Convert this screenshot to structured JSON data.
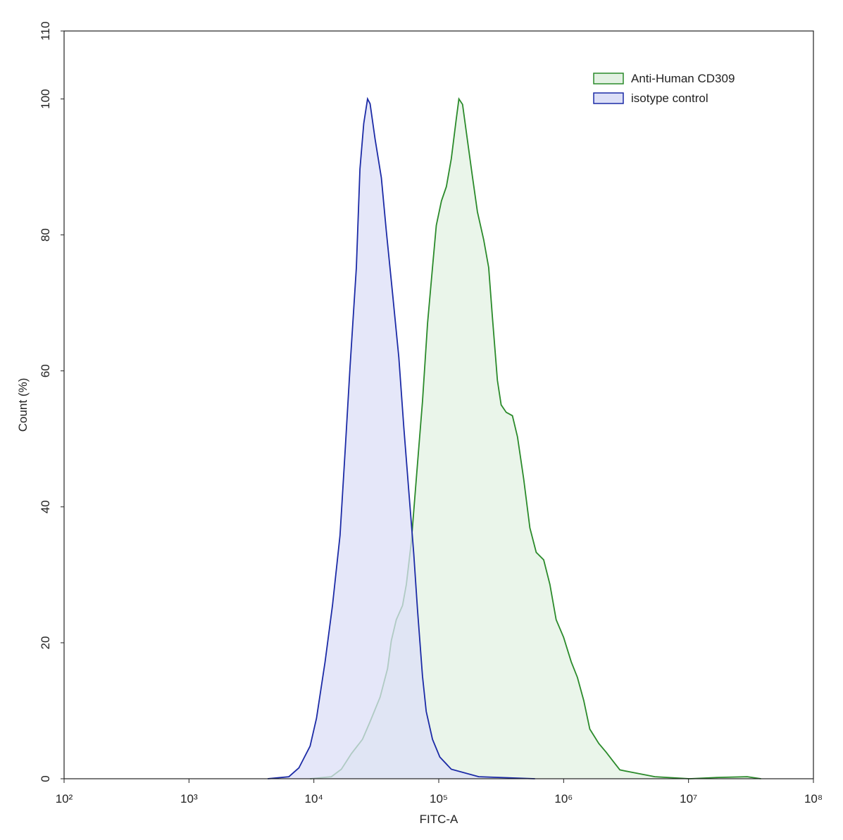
{
  "chart_data": {
    "type": "histogram-overlay",
    "x_label": "FITC-A",
    "y_label": "Count  (%)",
    "xscale": "log",
    "xlim": [
      100,
      100000000
    ],
    "ylim": [
      0,
      110
    ],
    "xticks": [
      {
        "value": 100,
        "label": "10²"
      },
      {
        "value": 1000,
        "label": "10³"
      },
      {
        "value": 10000,
        "label": "10⁴"
      },
      {
        "value": 100000,
        "label": "10⁵"
      },
      {
        "value": 1000000,
        "label": "10⁶"
      },
      {
        "value": 10000000,
        "label": "10⁷"
      },
      {
        "value": 100000000,
        "label": "10⁸"
      }
    ],
    "yticks": [
      0,
      20,
      40,
      60,
      80,
      100,
      110
    ],
    "legend": "top-right",
    "series": [
      {
        "name": "Anti-Human CD309",
        "color": "#2a8a2a",
        "fill": "#e3f1e3",
        "x": [
          9330,
          13800,
          16600,
          20000,
          24500,
          28200,
          33900,
          38900,
          41700,
          45700,
          51300,
          55000,
          60300,
          66100,
          74100,
          81300,
          89100,
          95500,
          105000,
          115000,
          126000,
          138000,
          145000,
          155000,
          170000,
          186000,
          204000,
          229000,
          251000,
          269000,
          295000,
          316000,
          347000,
          389000,
          427000,
          479000,
          537000,
          603000,
          692000,
          776000,
          871000,
          1000000,
          1150000,
          1290000,
          1450000,
          1620000,
          1910000,
          2190000,
          2510000,
          2820000,
          3390000,
          5370000,
          10200000,
          17400000,
          29500000,
          38000000
        ],
        "values": [
          0,
          0.3,
          1.4,
          3.7,
          5.8,
          8.4,
          12.0,
          16.2,
          20.3,
          23.4,
          25.5,
          28.6,
          34.8,
          44.1,
          55.5,
          67.0,
          75.2,
          81.4,
          85.0,
          87.1,
          91.2,
          97.0,
          100,
          99.2,
          93.8,
          88.6,
          83.4,
          79.3,
          75.2,
          67.9,
          58.6,
          55.0,
          53.9,
          53.4,
          50.3,
          44.1,
          36.9,
          33.3,
          32.2,
          28.6,
          23.4,
          20.8,
          17.2,
          14.9,
          11.5,
          7.3,
          5.2,
          3.9,
          2.5,
          1.3,
          1.0,
          0.3,
          0,
          0.2,
          0.3,
          0
        ]
      },
      {
        "name": "isotype control",
        "color": "#1b2aa6",
        "fill": "#dcdff7",
        "x": [
          4270,
          6310,
          7590,
          9330,
          10500,
          12300,
          14100,
          16200,
          17800,
          19500,
          21900,
          23400,
          25100,
          26900,
          28200,
          30900,
          34700,
          38000,
          42700,
          47900,
          52500,
          57500,
          63100,
          67600,
          74100,
          79400,
          89100,
          102000,
          126000,
          209000,
          589000
        ],
        "values": [
          0,
          0.3,
          1.6,
          4.8,
          8.9,
          17.2,
          25.5,
          35.8,
          48.3,
          60.7,
          75.2,
          89.7,
          96.4,
          100,
          99.3,
          94.1,
          88.4,
          80.6,
          71.3,
          62.0,
          51.7,
          42.4,
          33.1,
          24.9,
          15.1,
          9.9,
          5.8,
          3.2,
          1.4,
          0.3,
          0
        ]
      }
    ]
  }
}
